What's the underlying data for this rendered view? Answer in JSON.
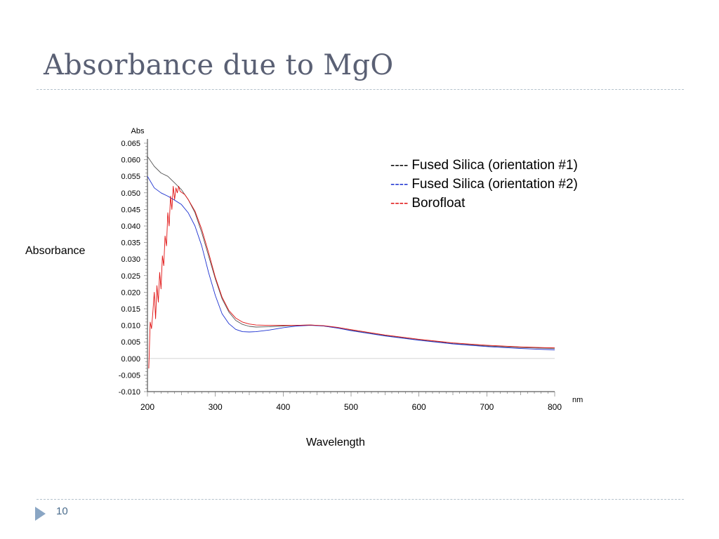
{
  "slide": {
    "title": "Absorbance due to MgO",
    "page_number": "10",
    "side_label": "Absorbance",
    "bottom_label": "Wavelength",
    "accent_color": "#8aa6c4"
  },
  "legend": [
    {
      "dash": "----",
      "label": "Fused Silica (orientation #1)",
      "color": "#000000"
    },
    {
      "dash": "----",
      "label": "Fused Silica (orientation #2)",
      "color": "#1a2fd0"
    },
    {
      "dash": "----",
      "label": "Borofloat",
      "color": "#e01010"
    }
  ],
  "chart_data": {
    "type": "line",
    "y_unit_label": "Abs",
    "x_unit_label": "nm",
    "xlim": [
      200,
      800
    ],
    "ylim": [
      -0.01,
      0.065
    ],
    "x_ticks": [
      "200",
      "300",
      "400",
      "500",
      "600",
      "700",
      "800"
    ],
    "y_ticks": [
      "0.065",
      "0.060",
      "0.055",
      "0.050",
      "0.045",
      "0.040",
      "0.035",
      "0.030",
      "0.025",
      "0.020",
      "0.015",
      "0.010",
      "0.005",
      "0.000",
      "-0.005",
      "-0.010"
    ],
    "y_tick_values": [
      0.065,
      0.06,
      0.055,
      0.05,
      0.045,
      0.04,
      0.035,
      0.03,
      0.025,
      0.02,
      0.015,
      0.01,
      0.005,
      0.0,
      -0.005,
      -0.01
    ],
    "zero_line": true,
    "series": [
      {
        "name": "Fused Silica (orientation #1)",
        "color": "#555555",
        "x": [
          200,
          210,
          220,
          230,
          240,
          250,
          260,
          270,
          280,
          290,
          300,
          310,
          320,
          330,
          340,
          350,
          360,
          380,
          400,
          420,
          440,
          460,
          480,
          500,
          550,
          600,
          650,
          700,
          750,
          800
        ],
        "y": [
          0.061,
          0.058,
          0.056,
          0.055,
          0.053,
          0.051,
          0.048,
          0.044,
          0.038,
          0.031,
          0.024,
          0.018,
          0.014,
          0.0115,
          0.0103,
          0.0097,
          0.0095,
          0.0096,
          0.0098,
          0.01,
          0.0101,
          0.0098,
          0.0092,
          0.0085,
          0.0069,
          0.0056,
          0.0045,
          0.0038,
          0.0033,
          0.003
        ]
      },
      {
        "name": "Fused Silica (orientation #2)",
        "color": "#1a2fd0",
        "x": [
          200,
          210,
          220,
          230,
          240,
          250,
          260,
          270,
          280,
          290,
          300,
          310,
          320,
          330,
          340,
          350,
          360,
          380,
          400,
          420,
          440,
          460,
          480,
          500,
          550,
          600,
          650,
          700,
          750,
          800
        ],
        "y": [
          0.055,
          0.0515,
          0.05,
          0.049,
          0.0478,
          0.0465,
          0.044,
          0.04,
          0.034,
          0.026,
          0.019,
          0.0135,
          0.0105,
          0.0088,
          0.0081,
          0.008,
          0.0081,
          0.0086,
          0.0093,
          0.0098,
          0.01,
          0.0098,
          0.0092,
          0.0084,
          0.0068,
          0.0055,
          0.0044,
          0.0036,
          0.003,
          0.0026
        ]
      },
      {
        "name": "Borofloat",
        "color": "#e01010",
        "x": [
          202,
          204,
          206,
          208,
          210,
          212,
          214,
          216,
          218,
          220,
          222,
          224,
          226,
          228,
          230,
          232,
          234,
          236,
          238,
          240,
          242,
          244,
          246,
          248,
          250,
          255,
          260,
          270,
          280,
          290,
          300,
          310,
          320,
          330,
          340,
          350,
          360,
          380,
          400,
          420,
          440,
          460,
          480,
          500,
          550,
          600,
          650,
          700,
          750,
          800
        ],
        "y": [
          -0.003,
          0.011,
          0.009,
          0.014,
          0.02,
          0.012,
          0.022,
          0.017,
          0.026,
          0.021,
          0.031,
          0.028,
          0.037,
          0.034,
          0.044,
          0.04,
          0.049,
          0.045,
          0.052,
          0.048,
          0.0515,
          0.05,
          0.052,
          0.0505,
          0.0502,
          0.0495,
          0.048,
          0.0445,
          0.039,
          0.032,
          0.0245,
          0.0185,
          0.0145,
          0.0122,
          0.011,
          0.0104,
          0.0101,
          0.01,
          0.01,
          0.01,
          0.0101,
          0.0099,
          0.0094,
          0.0087,
          0.0071,
          0.0058,
          0.0047,
          0.004,
          0.0035,
          0.0032
        ]
      }
    ]
  }
}
